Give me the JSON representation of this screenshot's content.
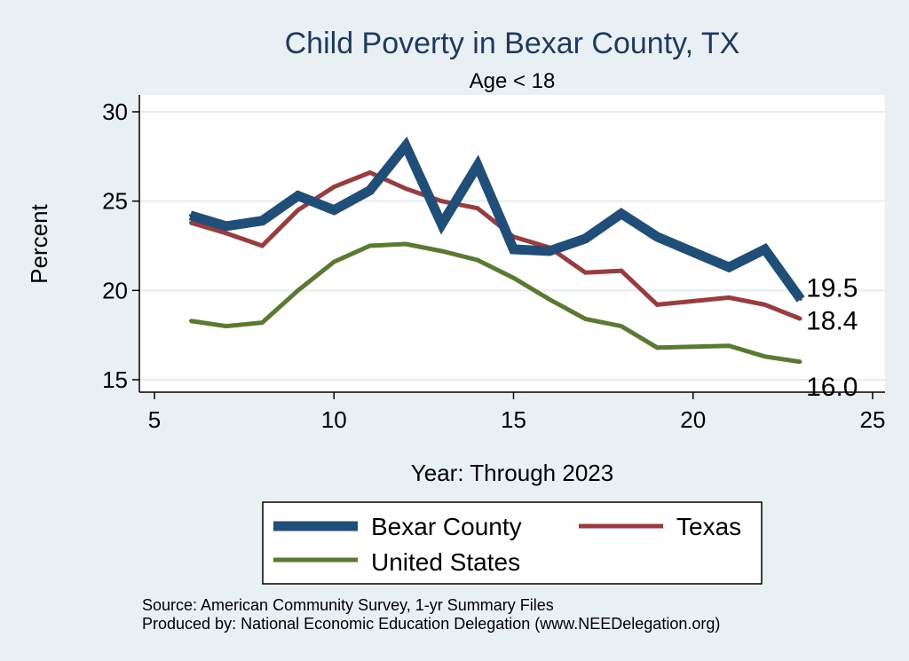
{
  "chart_data": {
    "type": "line",
    "title": "Child Poverty in Bexar County, TX",
    "subtitle": "Age < 18",
    "xlabel": "Year: Through 2023",
    "ylabel": "Percent",
    "xlim": [
      5,
      25
    ],
    "ylim": [
      15,
      30
    ],
    "xticks": [
      5,
      10,
      15,
      20,
      25
    ],
    "yticks": [
      15,
      20,
      25,
      30
    ],
    "grid": true,
    "legend_position": "bottom",
    "x": [
      6,
      7,
      8,
      9,
      10,
      11,
      12,
      13,
      14,
      15,
      16,
      17,
      18,
      19,
      21,
      22,
      23
    ],
    "series": [
      {
        "name": "Bexar County",
        "color": "#1f4e79",
        "values": [
          24.2,
          23.6,
          23.9,
          25.3,
          24.5,
          25.6,
          28.1,
          23.7,
          27.0,
          22.3,
          22.2,
          22.9,
          24.3,
          23.0,
          21.3,
          22.3,
          19.5
        ],
        "end_label": "19.5"
      },
      {
        "name": "Texas",
        "color": "#9b3a3f",
        "values": [
          23.8,
          23.2,
          22.5,
          24.5,
          25.8,
          26.6,
          25.7,
          25.0,
          24.6,
          23.0,
          22.4,
          21.0,
          21.1,
          19.2,
          19.6,
          19.2,
          18.4
        ],
        "end_label": "18.4"
      },
      {
        "name": "United States",
        "color": "#5a7a30",
        "values": [
          18.3,
          18.0,
          18.2,
          20.0,
          21.6,
          22.5,
          22.6,
          22.2,
          21.7,
          20.7,
          19.5,
          18.4,
          18.0,
          16.8,
          16.9,
          16.3,
          16.0
        ],
        "end_label": "16.0"
      }
    ]
  },
  "notes": {
    "source": "Source: American Community Survey, 1-yr Summary Files",
    "produced_by": "Produced by: National Economic Education Delegation (www.NEEDelegation.org)"
  }
}
